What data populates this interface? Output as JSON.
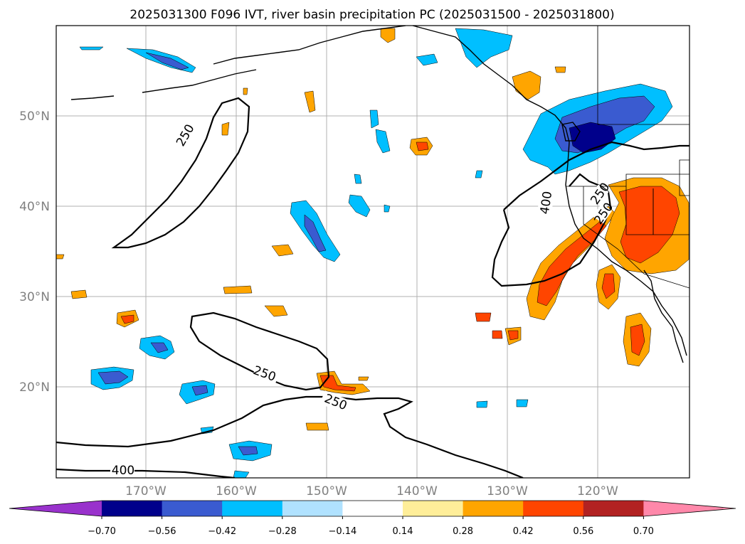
{
  "title": "2025031300 F096 IVT, river basin precipitation PC (2025031500 - 2025031800)",
  "lat_labels": [
    "50°N",
    "40°N",
    "30°N",
    "20°N"
  ],
  "lon_labels": [
    "170°W",
    "160°W",
    "150°W",
    "140°W",
    "130°W",
    "120°W"
  ],
  "contour_labels": [
    "250",
    "250",
    "250",
    "400",
    "400",
    "250",
    "250"
  ],
  "colorbar": {
    "tick_labels": [
      "−0.70",
      "−0.56",
      "−0.42",
      "−0.28",
      "−0.14",
      "0.14",
      "0.28",
      "0.42",
      "0.56",
      "0.70"
    ],
    "colors": [
      "#9932cc",
      "#00008b",
      "#3a5bd0",
      "#00bfff",
      "#b0e2ff",
      "#ffffff",
      "#ffee99",
      "#ffa500",
      "#ff4500",
      "#b22222",
      "#ff88aa"
    ]
  },
  "colors": {
    "neg_strong": "#00008b",
    "neg_mid": "#3a5bd0",
    "neg_light": "#00bfff",
    "neg_pale": "#b0e2ff",
    "pos_pale": "#ffee99",
    "pos_light": "#ffa500",
    "pos_mid": "#ff4500",
    "pos_strong": "#b22222",
    "grid": "#b0b0b0"
  }
}
